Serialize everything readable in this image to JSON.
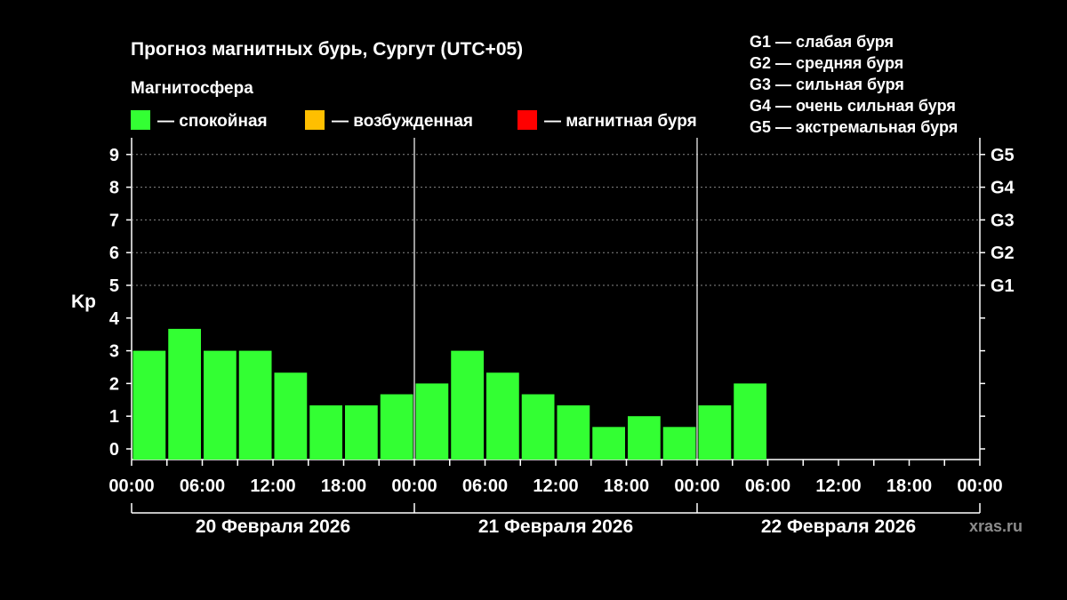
{
  "title": "Прогноз магнитных бурь, Сургут (UTC+05)",
  "subtitle": "Магнитосфера",
  "legend": [
    {
      "label": "— спокойная",
      "color": "#33ff33",
      "icon": "green-square"
    },
    {
      "label": "— возбужденная",
      "color": "#ffbf00",
      "icon": "amber-square"
    },
    {
      "label": "— магнитная буря",
      "color": "#ff0000",
      "icon": "red-square"
    }
  ],
  "storm_scale": [
    "G1 — слабая буря",
    "G2 — средняя буря",
    "G3 — сильная буря",
    "G4 — очень сильная буря",
    "G5 — экстремальная буря"
  ],
  "credit": "xras.ru",
  "colors": {
    "background": "#000000",
    "bar": "#33ff33",
    "text": "#ffffff",
    "grid": "#888888",
    "credit": "#8c8c8c"
  },
  "chart_data": {
    "type": "bar",
    "ylabel": "Kp",
    "ylim": [
      0,
      9
    ],
    "yticks": [
      "0",
      "1",
      "2",
      "3",
      "4",
      "5",
      "6",
      "7",
      "8",
      "9"
    ],
    "grid_dotted_levels": [
      5,
      6,
      7,
      8,
      9
    ],
    "right_ticks": [
      {
        "kp": 5,
        "label": "G1"
      },
      {
        "kp": 6,
        "label": "G2"
      },
      {
        "kp": 7,
        "label": "G3"
      },
      {
        "kp": 8,
        "label": "G4"
      },
      {
        "kp": 9,
        "label": "G5"
      }
    ],
    "x_step_hours": 3,
    "slots_total": 24,
    "xtick_labels": [
      "00:00",
      "06:00",
      "12:00",
      "18:00",
      "00:00",
      "06:00",
      "12:00",
      "18:00",
      "00:00",
      "06:00",
      "12:00",
      "18:00",
      "00:00"
    ],
    "days": [
      "20 Февраля 2026",
      "21 Февраля 2026",
      "22 Февраля 2026"
    ],
    "series": [
      {
        "values": [
          3,
          3.67,
          3,
          3,
          2.33,
          1.33,
          1.33,
          1.67,
          2,
          3,
          2.33,
          1.67,
          1.33,
          0.67,
          1,
          0.67,
          1.33,
          2
        ]
      }
    ]
  }
}
